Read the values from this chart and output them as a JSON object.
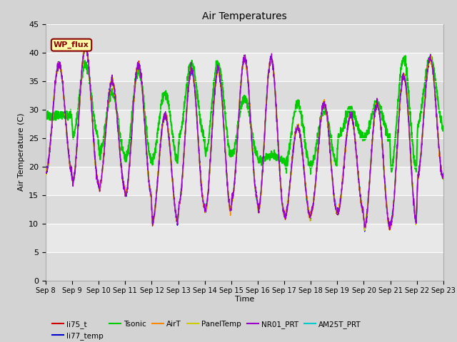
{
  "title": "Air Temperatures",
  "ylabel": "Air Temperature (C)",
  "xlabel": "Time",
  "ylim": [
    0,
    45
  ],
  "yticks": [
    0,
    5,
    10,
    15,
    20,
    25,
    30,
    35,
    40,
    45
  ],
  "x_labels": [
    "Sep 8",
    "Sep 9",
    "Sep 10",
    "Sep 11",
    "Sep 12",
    "Sep 13",
    "Sep 14",
    "Sep 15",
    "Sep 16",
    "Sep 17",
    "Sep 18",
    "Sep 19",
    "Sep 20",
    "Sep 21",
    "Sep 22",
    "Sep 23"
  ],
  "annotation_text": "WP_flux",
  "annotation_bg": "#FFFFAA",
  "annotation_border": "#8B0000",
  "annotation_text_color": "#8B0000",
  "fig_facecolor": "#D3D3D3",
  "plot_facecolor": "#E8E8E8",
  "grid_color": "#FFFFFF",
  "series": [
    {
      "label": "li75_t",
      "color": "#CC0000",
      "lw": 1.0,
      "zorder": 3
    },
    {
      "label": "li77_temp",
      "color": "#0000CC",
      "lw": 1.0,
      "zorder": 3
    },
    {
      "label": "Tsonic",
      "color": "#00CC00",
      "lw": 1.5,
      "zorder": 2
    },
    {
      "label": "AirT",
      "color": "#FF8800",
      "lw": 1.0,
      "zorder": 3
    },
    {
      "label": "PanelTemp",
      "color": "#CCCC00",
      "lw": 1.0,
      "zorder": 3
    },
    {
      "label": "NR01_PRT",
      "color": "#9900CC",
      "lw": 1.0,
      "zorder": 3
    },
    {
      "label": "AM25T_PRT",
      "color": "#00CCCC",
      "lw": 1.3,
      "zorder": 2
    }
  ],
  "day_peaks": [
    38,
    41,
    35,
    38,
    29,
    37,
    37,
    39,
    39,
    27,
    31,
    29,
    31,
    36,
    39
  ],
  "day_mins": [
    19,
    17,
    16,
    15,
    10,
    13,
    12,
    14,
    12,
    11,
    12,
    12,
    9,
    10,
    18
  ],
  "tsonic_day_peaks": [
    29,
    38,
    33,
    37,
    33,
    38,
    38,
    32,
    22,
    31,
    30,
    30,
    31,
    39,
    39
  ],
  "tsonic_day_mins": [
    29,
    25,
    22,
    21,
    21,
    25,
    22,
    22,
    21,
    20,
    20,
    25,
    25,
    19,
    27
  ]
}
